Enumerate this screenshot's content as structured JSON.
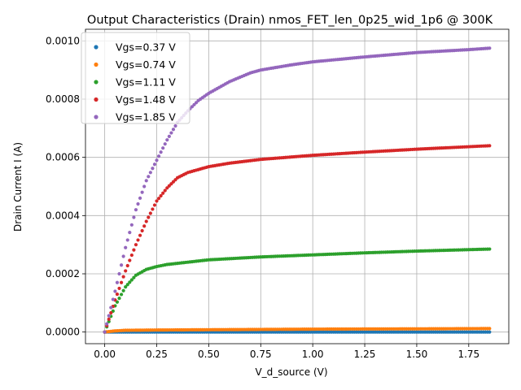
{
  "chart_data": {
    "type": "scatter",
    "title": "Output Characteristics (Drain) nmos_FET_len_0p25_wid_1p6 @ 300K",
    "xlabel": "V_d_source (V)",
    "ylabel": "Drain Current I (A)",
    "xlim": [
      -0.0925,
      1.9425
    ],
    "ylim": [
      -4e-05,
      0.00104
    ],
    "grid": true,
    "legend_position": "top-left",
    "x_ticks": [
      0.0,
      0.25,
      0.5,
      0.75,
      1.0,
      1.25,
      1.5,
      1.75
    ],
    "x_tick_labels": [
      "0.00",
      "0.25",
      "0.50",
      "0.75",
      "1.00",
      "1.25",
      "1.50",
      "1.75"
    ],
    "y_ticks": [
      0.0,
      0.0002,
      0.0004,
      0.0006,
      0.0008,
      0.001
    ],
    "y_tick_labels": [
      "0.0000",
      "0.0002",
      "0.0004",
      "0.0006",
      "0.0008",
      "0.0010"
    ],
    "x_range": [
      0.0,
      1.85
    ],
    "x_step": 0.01,
    "series": [
      {
        "name": "Vgs=0.37 V",
        "color": "#1f77b4",
        "x": [
          0.0,
          0.05,
          0.1,
          0.25,
          0.5,
          1.0,
          1.5,
          1.85
        ],
        "y": [
          0.0,
          0.0,
          0.0,
          0.0,
          0.0,
          0.0,
          0.0,
          0.0
        ]
      },
      {
        "name": "Vgs=0.74 V",
        "color": "#ff7f0e",
        "x": [
          0.0,
          0.05,
          0.1,
          0.25,
          0.5,
          1.0,
          1.5,
          1.85
        ],
        "y": [
          0.0,
          4e-06,
          6e-06,
          7e-06,
          8e-06,
          1e-05,
          1.1e-05,
          1.2e-05
        ]
      },
      {
        "name": "Vgs=1.11 V",
        "color": "#2ca02c",
        "x": [
          0.0,
          0.05,
          0.1,
          0.15,
          0.2,
          0.25,
          0.3,
          0.4,
          0.5,
          0.75,
          1.0,
          1.25,
          1.5,
          1.85
        ],
        "y": [
          0.0,
          9e-05,
          0.000155,
          0.000195,
          0.000215,
          0.000225,
          0.000232,
          0.00024,
          0.000248,
          0.000258,
          0.000265,
          0.000272,
          0.000278,
          0.000285
        ]
      },
      {
        "name": "Vgs=1.48 V",
        "color": "#d62728",
        "x": [
          0.0,
          0.05,
          0.1,
          0.15,
          0.2,
          0.25,
          0.3,
          0.35,
          0.4,
          0.5,
          0.6,
          0.75,
          1.0,
          1.25,
          1.5,
          1.85
        ],
        "y": [
          0.0,
          0.00011,
          0.00021,
          0.0003,
          0.00038,
          0.00045,
          0.000495,
          0.00053,
          0.000548,
          0.000568,
          0.00058,
          0.000593,
          0.000607,
          0.000618,
          0.000628,
          0.00064
        ]
      },
      {
        "name": "Vgs=1.85 V",
        "color": "#9467bd",
        "x": [
          0.0,
          0.05,
          0.1,
          0.15,
          0.2,
          0.25,
          0.3,
          0.35,
          0.4,
          0.45,
          0.5,
          0.6,
          0.7,
          0.75,
          0.9,
          1.0,
          1.25,
          1.5,
          1.75,
          1.85
        ],
        "y": [
          0.0,
          0.00014,
          0.00029,
          0.00042,
          0.00052,
          0.00059,
          0.00066,
          0.00072,
          0.00076,
          0.000795,
          0.00082,
          0.00086,
          0.00089,
          0.0009,
          0.000918,
          0.000928,
          0.000945,
          0.00096,
          0.00097,
          0.000975
        ]
      }
    ]
  }
}
